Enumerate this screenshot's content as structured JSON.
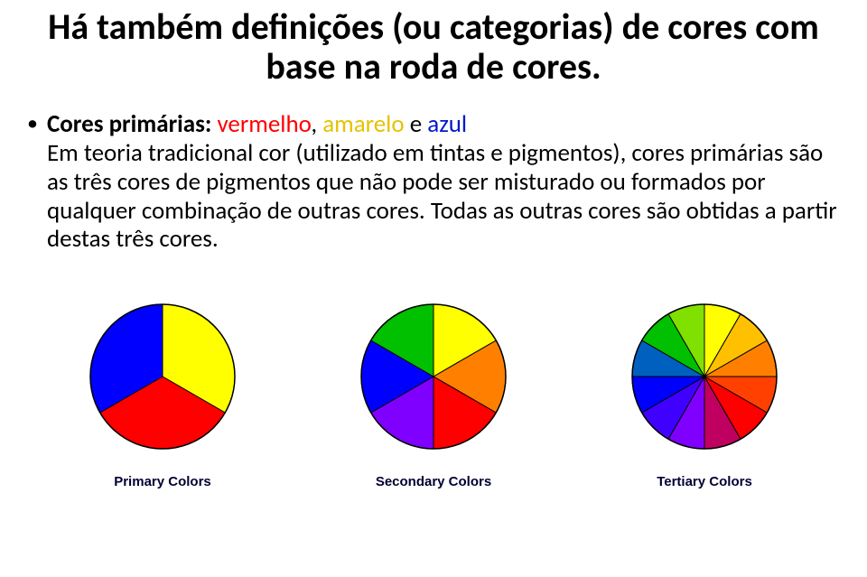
{
  "title": "Há também definições (ou categorias) de cores com base na roda de cores.",
  "bullet": "•",
  "label": "Cores primárias:",
  "primaries_txt": [
    {
      "text": "vermelho",
      "color": "#ff0000"
    },
    {
      "text": ", ",
      "color": "#000000"
    },
    {
      "text": "amarelo",
      "color": "#e6c200"
    },
    {
      "text": " e ",
      "color": "#000000"
    },
    {
      "text": "azul",
      "color": "#0018cc"
    }
  ],
  "body_rest": "Em teoria tradicional cor (utilizado em tintas e pigmentos), cores primárias são as três cores de pigmentos que não pode ser misturado ou formados por qualquer combinação de outras cores. Todas as outras cores são obtidas a partir destas três cores.",
  "wheels": {
    "radius": 80,
    "border": "#000000",
    "primary": {
      "caption": "Primary Colors",
      "slices": [
        {
          "start": -90,
          "end": 30,
          "fill": "#ffff00"
        },
        {
          "start": 30,
          "end": 150,
          "fill": "#ff0000"
        },
        {
          "start": 150,
          "end": 270,
          "fill": "#0000ff"
        }
      ]
    },
    "secondary": {
      "caption": "Secondary Colors",
      "slices": [
        {
          "start": -90,
          "end": -30,
          "fill": "#ffff00"
        },
        {
          "start": -30,
          "end": 30,
          "fill": "#ff8000"
        },
        {
          "start": 30,
          "end": 90,
          "fill": "#ff0000"
        },
        {
          "start": 90,
          "end": 150,
          "fill": "#8000ff"
        },
        {
          "start": 150,
          "end": 210,
          "fill": "#0000ff"
        },
        {
          "start": 210,
          "end": 270,
          "fill": "#00c000"
        }
      ]
    },
    "tertiary": {
      "caption": "Tertiary Colors",
      "slices": [
        {
          "start": -90,
          "end": -60,
          "fill": "#ffff00"
        },
        {
          "start": -60,
          "end": -30,
          "fill": "#ffc000"
        },
        {
          "start": -30,
          "end": 0,
          "fill": "#ff8000"
        },
        {
          "start": 0,
          "end": 30,
          "fill": "#ff4000"
        },
        {
          "start": 30,
          "end": 60,
          "fill": "#ff0000"
        },
        {
          "start": 60,
          "end": 90,
          "fill": "#c00060"
        },
        {
          "start": 90,
          "end": 120,
          "fill": "#8000ff"
        },
        {
          "start": 120,
          "end": 150,
          "fill": "#4000ff"
        },
        {
          "start": 150,
          "end": 180,
          "fill": "#0000ff"
        },
        {
          "start": 180,
          "end": 210,
          "fill": "#0060c0"
        },
        {
          "start": 210,
          "end": 240,
          "fill": "#00c000"
        },
        {
          "start": 240,
          "end": 270,
          "fill": "#80e000"
        }
      ]
    }
  }
}
